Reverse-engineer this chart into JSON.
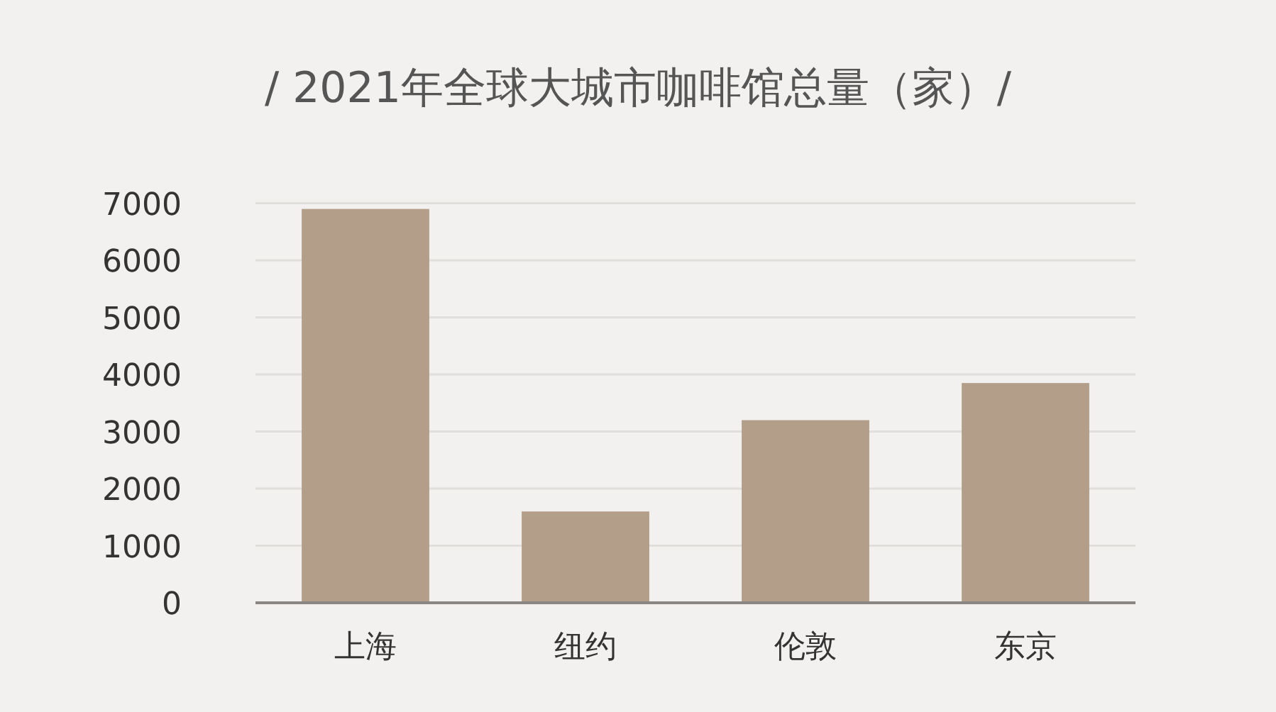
{
  "chart_data": {
    "type": "bar",
    "title": "/ 2021年全球大城市咖啡馆总量（家）/",
    "categories": [
      "上海",
      "纽约",
      "伦敦",
      "东京"
    ],
    "values": [
      6900,
      1600,
      3200,
      3850
    ],
    "color": "#b39e89",
    "ylim": [
      0,
      7000
    ],
    "yticks": [
      0,
      1000,
      2000,
      3000,
      4000,
      5000,
      6000,
      7000
    ],
    "grid": "y"
  }
}
